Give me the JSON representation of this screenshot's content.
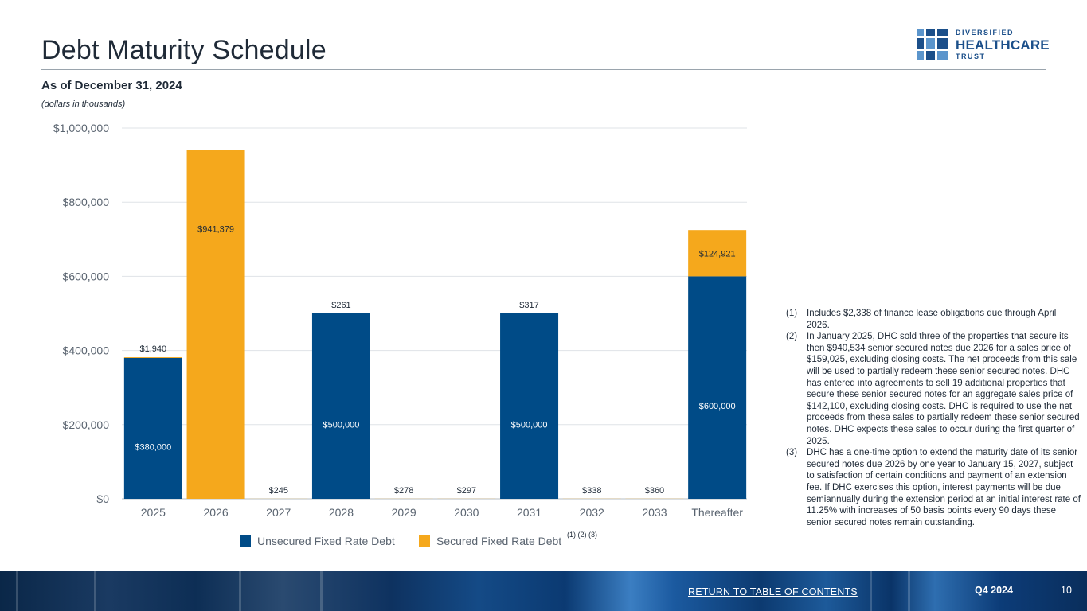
{
  "header": {
    "title": "Debt Maturity Schedule",
    "subtitle": "As of December 31, 2024",
    "units_note": "(dollars in thousands)"
  },
  "logo": {
    "line1": "DIVERSIFIED",
    "line2": "HEALTHCARE",
    "line3": "TRUST",
    "colors": {
      "dark": "#1b4f8a",
      "light": "#5b95cc"
    }
  },
  "chart_data": {
    "type": "bar",
    "stacked": true,
    "title": "",
    "xlabel": "",
    "ylabel": "",
    "ylim": [
      0,
      1000000
    ],
    "yticks": [
      0,
      200000,
      400000,
      600000,
      800000,
      1000000
    ],
    "ytick_labels": [
      "$0",
      "$200,000",
      "$400,000",
      "$600,000",
      "$800,000",
      "$1,000,000"
    ],
    "categories": [
      "2025",
      "2026",
      "2027",
      "2028",
      "2029",
      "2030",
      "2031",
      "2032",
      "2033",
      "Thereafter"
    ],
    "series": [
      {
        "name": "Unsecured Fixed Rate Debt",
        "color": "#004b87",
        "values": [
          380000,
          0,
          0,
          500000,
          0,
          0,
          500000,
          0,
          0,
          600000
        ],
        "labels": [
          "$380,000",
          "",
          "",
          "$500,000",
          "",
          "",
          "$500,000",
          "",
          "",
          "$600,000"
        ]
      },
      {
        "name": "Secured Fixed Rate Debt",
        "color": "#f5a81c",
        "values": [
          1940,
          941379,
          245,
          261,
          278,
          297,
          317,
          338,
          360,
          124921
        ],
        "labels": [
          "$1,940",
          "$941,379",
          "$245",
          "$261",
          "$278",
          "$297",
          "$317",
          "$338",
          "$360",
          "$124,921"
        ]
      }
    ],
    "legend": [
      {
        "label": "Unsecured Fixed Rate Debt",
        "color": "#004b87"
      },
      {
        "label": "Secured Fixed Rate Debt",
        "color": "#f5a81c",
        "superscript": "(1) (2) (3)"
      }
    ],
    "legend_position": "bottom",
    "grid": true
  },
  "notes": [
    {
      "num": "(1)",
      "text": "Includes $2,338 of finance lease obligations due through April 2026."
    },
    {
      "num": "(2)",
      "text": "In January 2025, DHC sold three of the properties that secure its then $940,534 senior secured notes due 2026 for a sales price of $159,025, excluding closing costs. The net proceeds from this sale will be used to partially redeem these senior secured notes. DHC has entered into agreements to sell 19 additional properties that secure these senior secured notes for an aggregate sales price of $142,100, excluding closing costs. DHC is required to use the net proceeds from these sales to partially redeem these senior secured notes. DHC expects these sales to occur during the first quarter of 2025."
    },
    {
      "num": "(3)",
      "text": "DHC has a one-time option to extend the maturity date of its senior secured notes due 2026 by one year to January 15, 2027, subject to satisfaction of certain conditions and payment of an extension fee. If DHC exercises this option, interest payments will be due semiannually during the extension period at an initial interest rate of 11.25% with increases of 50 basis points every 90 days these senior secured notes remain outstanding."
    }
  ],
  "footer": {
    "link_label": "RETURN TO TABLE OF CONTENTS",
    "period": "Q4 2024",
    "page_number": "10"
  }
}
